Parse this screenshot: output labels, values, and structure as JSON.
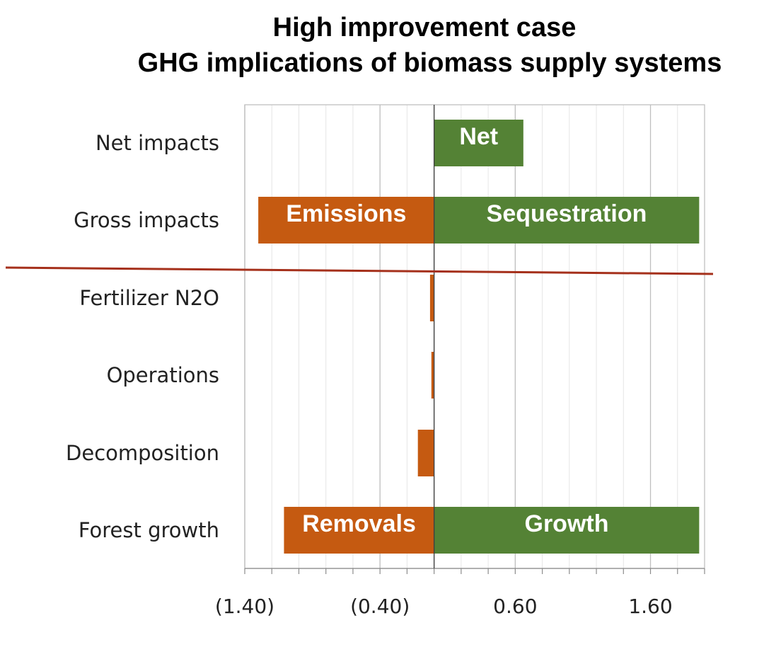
{
  "chart_data": {
    "type": "bar",
    "orientation": "horizontal",
    "title": "High improvement case",
    "subtitle": "GHG implications of biomass supply systems",
    "categories": [
      "Net impacts",
      "Gross impacts",
      "Fertilizer N2O",
      "Operations",
      "Decomposition",
      "Forest growth"
    ],
    "xlim": [
      -1.4,
      2.0
    ],
    "x_ticks": [
      -1.4,
      -0.4,
      0.6,
      1.6
    ],
    "x_tick_labels": [
      "(1.40)",
      "(0.40)",
      "0.60",
      "1.60"
    ],
    "grid": "vertical",
    "bars": [
      {
        "category": "Net impacts",
        "start": 0,
        "end": 0.66,
        "color": "#548235",
        "label": "Net"
      },
      {
        "category": "Gross impacts",
        "start": -1.3,
        "end": 0,
        "color": "#C55A11",
        "label": "Emissions"
      },
      {
        "category": "Gross impacts",
        "start": 0,
        "end": 1.96,
        "color": "#548235",
        "label": "Sequestration"
      },
      {
        "category": "Fertilizer N2O",
        "start": -0.03,
        "end": 0,
        "color": "#C55A11",
        "label": ""
      },
      {
        "category": "Operations",
        "start": -0.02,
        "end": 0,
        "color": "#C55A11",
        "label": ""
      },
      {
        "category": "Decomposition",
        "start": -0.12,
        "end": 0,
        "color": "#C55A11",
        "label": ""
      },
      {
        "category": "Forest growth",
        "start": -1.11,
        "end": 0,
        "color": "#C55A11",
        "label": "Removals"
      },
      {
        "category": "Forest growth",
        "start": 0,
        "end": 1.96,
        "color": "#548235",
        "label": "Growth"
      }
    ],
    "divider_color": "#A5301B"
  }
}
